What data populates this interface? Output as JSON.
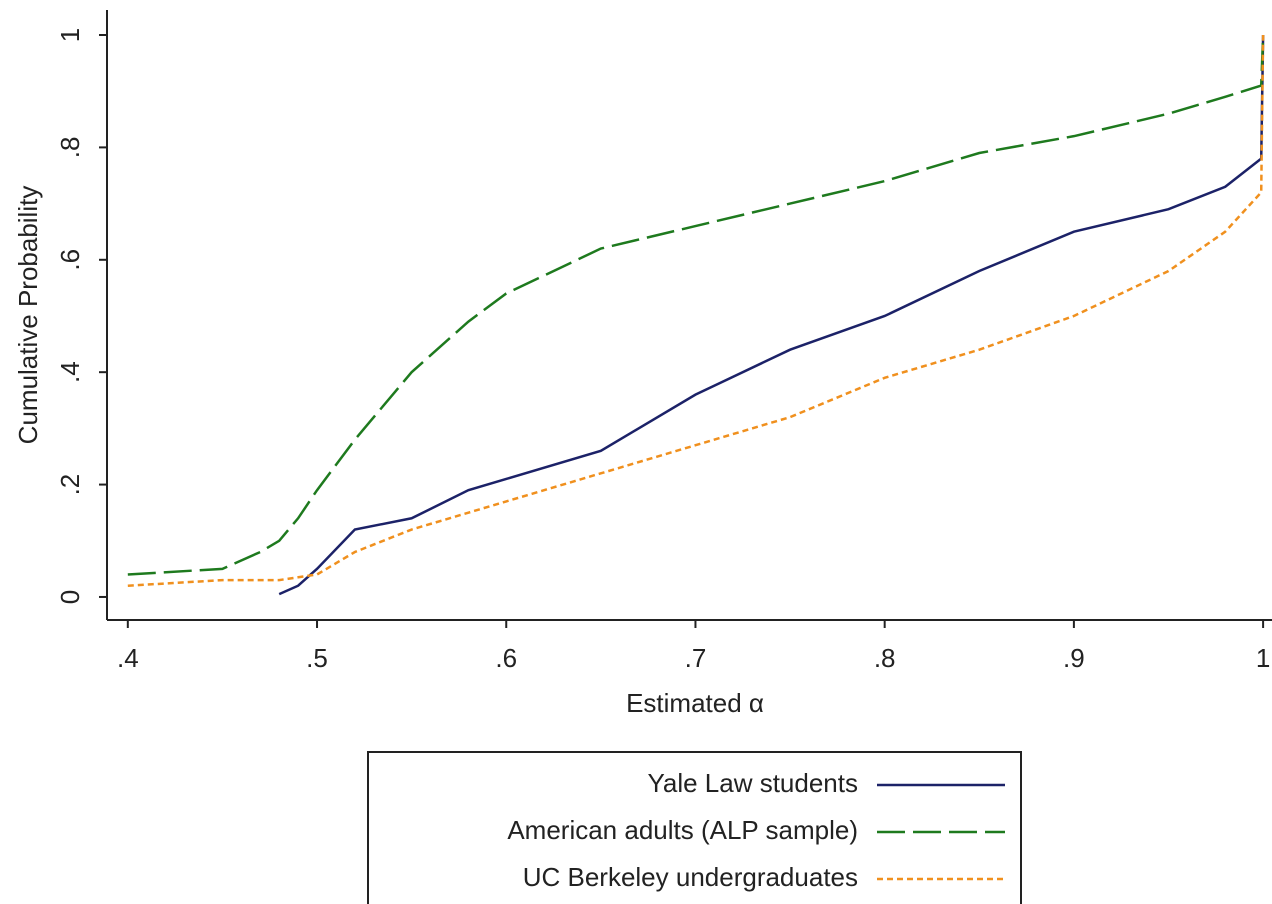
{
  "chart_data": {
    "type": "line",
    "x_label": "Estimated α",
    "y_label": "Cumulative Probability",
    "x": [
      0.4,
      0.45,
      0.47,
      0.48,
      0.49,
      0.5,
      0.52,
      0.55,
      0.58,
      0.6,
      0.65,
      0.7,
      0.75,
      0.8,
      0.85,
      0.9,
      0.95,
      0.98,
      0.999,
      1.0
    ],
    "series": [
      {
        "name": "Yale Law students",
        "color": "#1c2268",
        "dash": "none",
        "values": [
          null,
          null,
          null,
          0.005,
          0.02,
          0.05,
          0.12,
          0.14,
          0.19,
          0.21,
          0.26,
          0.36,
          0.44,
          0.5,
          0.58,
          0.65,
          0.69,
          0.73,
          0.78,
          1.0
        ]
      },
      {
        "name": "American adults (ALP sample)",
        "color": "#1e7a1e",
        "dash": "28 8",
        "values": [
          0.04,
          0.05,
          0.08,
          0.1,
          0.14,
          0.19,
          0.28,
          0.4,
          0.49,
          0.54,
          0.62,
          0.66,
          0.7,
          0.74,
          0.79,
          0.82,
          0.86,
          0.89,
          0.91,
          1.0
        ]
      },
      {
        "name": "UC Berkeley undergraduates",
        "color": "#f0901e",
        "dash": "6 4",
        "values": [
          0.02,
          0.03,
          0.03,
          0.03,
          0.035,
          0.04,
          0.08,
          0.12,
          0.15,
          0.17,
          0.22,
          0.27,
          0.32,
          0.39,
          0.44,
          0.5,
          0.58,
          0.65,
          0.72,
          1.0
        ]
      }
    ],
    "xlim": [
      0.389,
      1.0047
    ],
    "ylim": [
      -0.041,
      1.0445
    ],
    "xticks": [
      {
        "value": 0.4,
        "label": ".4"
      },
      {
        "value": 0.5,
        "label": ".5"
      },
      {
        "value": 0.6,
        "label": ".6"
      },
      {
        "value": 0.7,
        "label": ".7"
      },
      {
        "value": 0.8,
        "label": ".8"
      },
      {
        "value": 0.9,
        "label": ".9"
      },
      1
    ],
    "yticks": [
      0,
      {
        "value": 0.2,
        "label": ".2"
      },
      {
        "value": 0.4,
        "label": ".4"
      },
      {
        "value": 0.6,
        "label": ".6"
      },
      {
        "value": 0.8,
        "label": ".8"
      },
      1
    ]
  }
}
